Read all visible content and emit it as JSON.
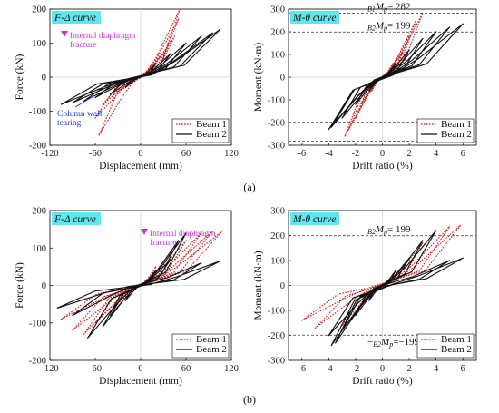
{
  "colors": {
    "beam1": "#c81e1e",
    "beam2": "#111111",
    "title_bg": "#5fe6ef",
    "fracture": "#c13ad0",
    "tearing": "#1f3cd6"
  },
  "captions": {
    "a": "(a)",
    "b": "(b)"
  },
  "chart_data": [
    {
      "id": "a-left",
      "type": "line",
      "title": "F-Δ curve",
      "xlabel": "Displacement (mm)",
      "ylabel": "Force (kN)",
      "xlim": [
        -120,
        120
      ],
      "ylim": [
        -200,
        200
      ],
      "xticks": [
        -120,
        -60,
        0,
        60,
        120
      ],
      "yticks": [
        -200,
        -100,
        0,
        100,
        200
      ],
      "legend": {
        "position": "bottom-right",
        "entries": [
          "Beam 1",
          "Beam 2"
        ]
      },
      "annotations": [
        "Internal diaphragm fracture",
        "Column wall tearing"
      ],
      "series": [
        {
          "name": "Beam 1",
          "style": "dotted",
          "peaks": [
            [
              15,
              40
            ],
            [
              25,
              60
            ],
            [
              35,
              85
            ],
            [
              45,
              120
            ],
            [
              50,
              170
            ],
            [
              52,
              200
            ]
          ],
          "troughs": [
            [
              -20,
              -30
            ],
            [
              -35,
              -50
            ],
            [
              -50,
              -80
            ],
            [
              -60,
              -120
            ],
            [
              -55,
              -170
            ]
          ]
        },
        {
          "name": "Beam 2",
          "style": "solid",
          "peaks": [
            [
              20,
              40
            ],
            [
              40,
              70
            ],
            [
              60,
              100
            ],
            [
              80,
              120
            ],
            [
              95,
              130
            ],
            [
              105,
              140
            ]
          ],
          "troughs": [
            [
              -20,
              -30
            ],
            [
              -40,
              -50
            ],
            [
              -60,
              -60
            ],
            [
              -75,
              -70
            ],
            [
              -90,
              -75
            ],
            [
              -105,
              -80
            ]
          ]
        }
      ]
    },
    {
      "id": "a-right",
      "type": "line",
      "title": "M-θ curve",
      "xlabel": "Drift ratio (%)",
      "ylabel": "Moment (kN·m)",
      "xlim": [
        -7,
        7
      ],
      "ylim": [
        -300,
        300
      ],
      "xticks": [
        -6,
        -4,
        -2,
        0,
        2,
        4,
        6
      ],
      "yticks": [
        -300,
        -200,
        -100,
        0,
        100,
        200,
        300
      ],
      "legend": {
        "position": "bottom-right",
        "entries": [
          "Beam 1",
          "Beam 2"
        ]
      },
      "reference_lines": [
        {
          "label_sub": "B1",
          "label_main": "M",
          "label_p": "p",
          "label_value": "= 282",
          "value": 282,
          "style": "dash"
        },
        {
          "label_sub": "B2",
          "label_main": "M",
          "label_p": "p",
          "label_value": "= 199",
          "value": 199,
          "style": "dash"
        },
        {
          "value": -199,
          "style": "dash"
        },
        {
          "value": -282,
          "style": "dash"
        }
      ],
      "series": [
        {
          "name": "Beam 1",
          "style": "dotted",
          "peaks": [
            [
              0.8,
              60
            ],
            [
              1.5,
              110
            ],
            [
              2,
              180
            ],
            [
              2.5,
              250
            ],
            [
              3,
              282
            ]
          ],
          "troughs": [
            [
              -0.8,
              -60
            ],
            [
              -1.5,
              -110
            ],
            [
              -2,
              -180
            ],
            [
              -2.5,
              -230
            ],
            [
              -2.8,
              -260
            ]
          ]
        },
        {
          "name": "Beam 2",
          "style": "solid",
          "peaks": [
            [
              1,
              60
            ],
            [
              2,
              120
            ],
            [
              3,
              170
            ],
            [
              4,
              200
            ],
            [
              5,
              220
            ],
            [
              6,
              235
            ]
          ],
          "troughs": [
            [
              -1,
              -60
            ],
            [
              -2,
              -120
            ],
            [
              -3,
              -180
            ],
            [
              -3.8,
              -220
            ],
            [
              -4,
              -230
            ]
          ]
        }
      ]
    },
    {
      "id": "b-left",
      "type": "line",
      "title": "F-Δ curve",
      "xlabel": "Displacement (mm)",
      "ylabel": "Force (kN)",
      "xlim": [
        -120,
        120
      ],
      "ylim": [
        -200,
        200
      ],
      "xticks": [
        -120,
        -60,
        0,
        60,
        120
      ],
      "yticks": [
        -200,
        -100,
        0,
        100,
        200
      ],
      "legend": {
        "position": "bottom-right",
        "entries": [
          "Beam 1",
          "Beam 2"
        ]
      },
      "annotations": [
        "Internal diaphragm fracture"
      ],
      "series": [
        {
          "name": "Beam 1",
          "style": "dotted",
          "peaks": [
            [
              20,
              50
            ],
            [
              40,
              90
            ],
            [
              60,
              120
            ],
            [
              80,
              140
            ],
            [
              95,
              145
            ],
            [
              108,
              145
            ]
          ],
          "troughs": [
            [
              -20,
              -40
            ],
            [
              -40,
              -70
            ],
            [
              -60,
              -100
            ],
            [
              -75,
              -130
            ],
            [
              -90,
              -120
            ],
            [
              -105,
              -90
            ]
          ]
        },
        {
          "name": "Beam 2",
          "style": "solid",
          "peaks": [
            [
              20,
              40
            ],
            [
              40,
              70
            ],
            [
              50,
              120
            ],
            [
              60,
              140
            ],
            [
              80,
              60
            ],
            [
              105,
              65
            ]
          ],
          "troughs": [
            [
              -20,
              -40
            ],
            [
              -40,
              -80
            ],
            [
              -50,
              -110
            ],
            [
              -70,
              -140
            ],
            [
              -90,
              -80
            ],
            [
              -110,
              -60
            ]
          ]
        }
      ]
    },
    {
      "id": "b-right",
      "type": "line",
      "title": "M-θ curve",
      "xlabel": "Drift ratio (%)",
      "ylabel": "Moment (kN·m)",
      "xlim": [
        -7,
        7
      ],
      "ylim": [
        -300,
        300
      ],
      "xticks": [
        -6,
        -4,
        -2,
        0,
        2,
        4,
        6
      ],
      "yticks": [
        -300,
        -200,
        -100,
        0,
        100,
        200,
        300
      ],
      "legend": {
        "position": "bottom-right",
        "entries": [
          "Beam 1",
          "Beam 2"
        ]
      },
      "reference_lines": [
        {
          "label_sub": "B2",
          "label_main": "M",
          "label_p": "p",
          "label_value": "= 199",
          "value": 199,
          "style": "dash"
        },
        {
          "label_sub": "B2",
          "label_main": "M",
          "label_p": "p",
          "label_value": "=−199",
          "value": -199,
          "style": "dash",
          "prefix": "−"
        }
      ],
      "series": [
        {
          "name": "Beam 1",
          "style": "dotted",
          "peaks": [
            [
              1,
              60
            ],
            [
              2,
              110
            ],
            [
              3,
              170
            ],
            [
              4,
              220
            ],
            [
              5,
              235
            ],
            [
              5.8,
              240
            ]
          ],
          "troughs": [
            [
              -1,
              -60
            ],
            [
              -2,
              -110
            ],
            [
              -3,
              -160
            ],
            [
              -4,
              -200
            ],
            [
              -5,
              -170
            ],
            [
              -6,
              -140
            ]
          ]
        },
        {
          "name": "Beam 2",
          "style": "solid",
          "peaks": [
            [
              1,
              60
            ],
            [
              2,
              110
            ],
            [
              3,
              180
            ],
            [
              4,
              220
            ],
            [
              5,
              100
            ],
            [
              6,
              110
            ]
          ],
          "troughs": [
            [
              -1,
              -60
            ],
            [
              -2,
              -120
            ],
            [
              -3,
              -180
            ],
            [
              -3.5,
              -230
            ],
            [
              -3.8,
              -240
            ],
            [
              -4,
              -200
            ]
          ]
        }
      ]
    }
  ]
}
